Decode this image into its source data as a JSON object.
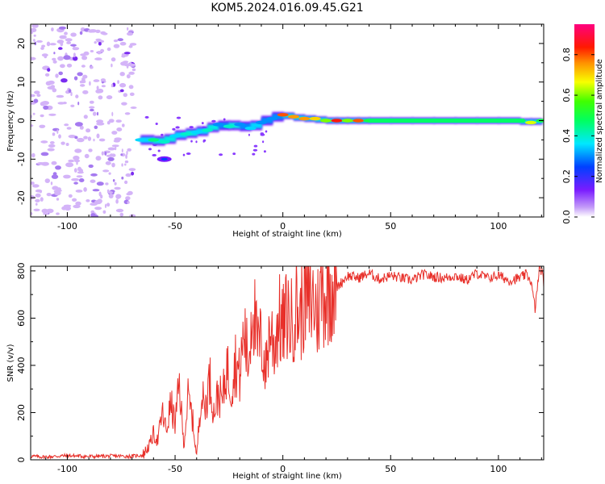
{
  "title": "KOM5.2024.016.09.45.G21",
  "chart_data": [
    {
      "type": "heatmap",
      "xlabel": "Height of straight line (km)",
      "ylabel": "Frequency (Hz)",
      "xlim": [
        -117,
        121
      ],
      "ylim": [
        -25,
        25
      ],
      "xticks": [
        -100,
        -50,
        0,
        50,
        100
      ],
      "yticks": [
        -20,
        -10,
        0,
        10,
        20
      ],
      "xtick_labels": [
        "-100",
        "-50",
        "0",
        "50",
        "100"
      ],
      "ytick_labels": [
        "-20",
        "-10",
        "0",
        "10",
        "20"
      ],
      "colorbar": {
        "label": "Normalized spectral amplitude",
        "range": [
          0,
          0.95
        ],
        "ticks": [
          0.0,
          0.2,
          0.4,
          0.6,
          0.8
        ],
        "tick_labels": [
          "0.0",
          "0.2",
          "0.4",
          "0.6",
          "0.8"
        ],
        "colormap": "hsv-rainbow (white, violet, blue, cyan, green, yellow, orange, red, magenta)"
      },
      "signal_trace": [
        {
          "x": -66,
          "y": -5,
          "amp": 0.35
        },
        {
          "x": -60,
          "y": -5,
          "amp": 0.45
        },
        {
          "x": -55,
          "y": -5.5,
          "amp": 0.4
        },
        {
          "x": -50,
          "y": -4,
          "amp": 0.35
        },
        {
          "x": -45,
          "y": -3.5,
          "amp": 0.4
        },
        {
          "x": -40,
          "y": -3,
          "amp": 0.35
        },
        {
          "x": -35,
          "y": -2.5,
          "amp": 0.4
        },
        {
          "x": -30,
          "y": -1,
          "amp": 0.3
        },
        {
          "x": -25,
          "y": -1.5,
          "amp": 0.4
        },
        {
          "x": -20,
          "y": -1,
          "amp": 0.3
        },
        {
          "x": -15,
          "y": -2,
          "amp": 0.35
        },
        {
          "x": -10,
          "y": -0.5,
          "amp": 0.3
        },
        {
          "x": -5,
          "y": 0.5,
          "amp": 0.3
        },
        {
          "x": 0,
          "y": 1.5,
          "amp": 0.8
        },
        {
          "x": 5,
          "y": 1,
          "amp": 0.75
        },
        {
          "x": 10,
          "y": 0.5,
          "amp": 0.75
        },
        {
          "x": 15,
          "y": 0.5,
          "amp": 0.7
        },
        {
          "x": 20,
          "y": 0,
          "amp": 0.6
        },
        {
          "x": 25,
          "y": 0,
          "amp": 0.85
        },
        {
          "x": 30,
          "y": 0,
          "amp": 0.6
        },
        {
          "x": 35,
          "y": 0,
          "amp": 0.8
        },
        {
          "x": 40,
          "y": 0,
          "amp": 0.5
        },
        {
          "x": 50,
          "y": 0,
          "amp": 0.45
        },
        {
          "x": 60,
          "y": 0,
          "amp": 0.45
        },
        {
          "x": 70,
          "y": 0,
          "amp": 0.45
        },
        {
          "x": 80,
          "y": 0,
          "amp": 0.45
        },
        {
          "x": 90,
          "y": 0,
          "amp": 0.45
        },
        {
          "x": 100,
          "y": 0,
          "amp": 0.45
        },
        {
          "x": 110,
          "y": 0,
          "amp": 0.5
        },
        {
          "x": 115,
          "y": -0.5,
          "amp": 0.65
        },
        {
          "x": 120,
          "y": 0,
          "amp": 0.5
        }
      ]
    },
    {
      "type": "line",
      "xlabel": "Height of straight line (km)",
      "ylabel": "SNR (v/v)",
      "xlim": [
        -117,
        121
      ],
      "ylim": [
        0,
        820
      ],
      "xticks": [
        -100,
        -50,
        0,
        50,
        100
      ],
      "yticks": [
        0,
        200,
        400,
        600,
        800
      ],
      "xtick_labels": [
        "-100",
        "-50",
        "0",
        "50",
        "100"
      ],
      "ytick_labels": [
        "0",
        "200",
        "400",
        "600",
        "800"
      ],
      "color": "#e8302a",
      "x": [
        -117,
        -110,
        -100,
        -90,
        -80,
        -70,
        -65,
        -62,
        -60,
        -58,
        -56,
        -54,
        -52,
        -50,
        -48,
        -46,
        -44,
        -42,
        -40,
        -38,
        -36,
        -34,
        -32,
        -30,
        -28,
        -26,
        -24,
        -22,
        -20,
        -18,
        -16,
        -14,
        -12,
        -10,
        -8,
        -6,
        -4,
        -2,
        0,
        2,
        4,
        6,
        8,
        10,
        12,
        14,
        16,
        18,
        20,
        22,
        25,
        28,
        30,
        35,
        40,
        45,
        50,
        55,
        60,
        65,
        70,
        75,
        80,
        85,
        90,
        95,
        100,
        105,
        110,
        113,
        115,
        117,
        118,
        119,
        120,
        121
      ],
      "y": [
        15,
        12,
        18,
        14,
        16,
        15,
        20,
        60,
        110,
        80,
        200,
        120,
        240,
        150,
        320,
        60,
        260,
        180,
        10,
        280,
        220,
        350,
        200,
        280,
        250,
        400,
        300,
        420,
        350,
        550,
        400,
        700,
        480,
        500,
        380,
        560,
        480,
        600,
        550,
        620,
        580,
        660,
        600,
        700,
        650,
        680,
        620,
        720,
        700,
        750,
        730,
        760,
        780,
        770,
        790,
        765,
        780,
        770,
        760,
        785,
        775,
        770,
        780,
        760,
        790,
        770,
        780,
        760,
        770,
        785,
        760,
        640,
        720,
        820,
        800,
        750
      ]
    }
  ]
}
